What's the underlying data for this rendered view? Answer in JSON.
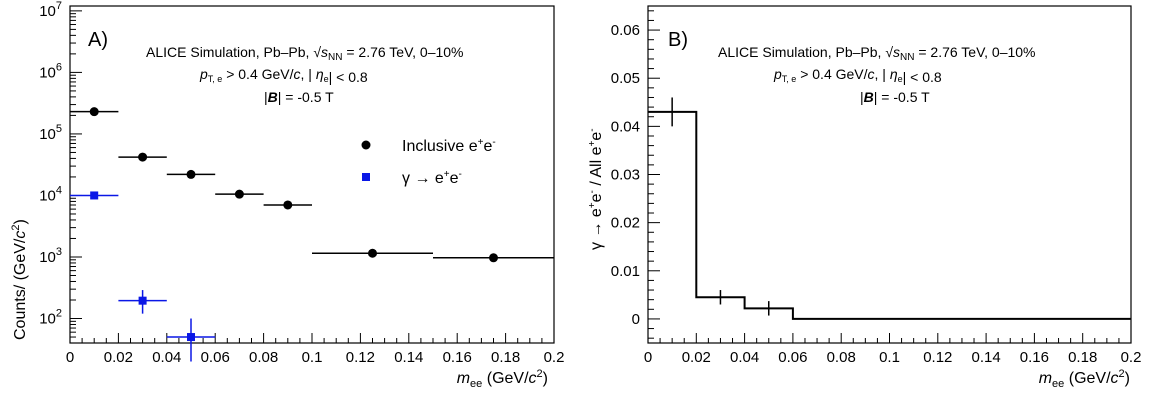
{
  "chart_data": [
    {
      "type": "scatter",
      "panel_label": "A)",
      "annotations": [
        "ALICE Simulation, Pb–Pb,",
        "= 2.76 TeV, 0–10%",
        "> 0.4 GeV/",
        ", |",
        "| < 0.8",
        "= -0.5 T"
      ],
      "xlabel": "(GeV/",
      "ylabel": "Counts/ (GeV/",
      "xlim": [
        0,
        0.2
      ],
      "ylim": [
        40,
        12000000
      ],
      "yscale": "log",
      "x_ticks": [
        "0",
        "0.02",
        "0.04",
        "0.06",
        "0.08",
        "0.1",
        "0.12",
        "0.14",
        "0.16",
        "0.18",
        "0.2"
      ],
      "y_ticks": [
        "10",
        "10",
        "10",
        "10",
        "10",
        "10",
        "10"
      ],
      "y_tick_exponents": [
        "2",
        "3",
        "4",
        "5",
        "6",
        "7"
      ],
      "legend_position": "center-right",
      "series": [
        {
          "name": "Inclusive e",
          "marker": "circle",
          "color": "#000000",
          "points": [
            {
              "x": 0.01,
              "xerr": 0.01,
              "y": 230000
            },
            {
              "x": 0.03,
              "xerr": 0.01,
              "y": 42000
            },
            {
              "x": 0.05,
              "xerr": 0.01,
              "y": 22000
            },
            {
              "x": 0.07,
              "xerr": 0.01,
              "y": 10500
            },
            {
              "x": 0.09,
              "xerr": 0.01,
              "y": 7000
            },
            {
              "x": 0.125,
              "xerr": 0.025,
              "y": 1150
            },
            {
              "x": 0.175,
              "xerr": 0.025,
              "y": 970,
              "yerr": [
                880,
                1080
              ]
            }
          ]
        },
        {
          "name": "γ → e",
          "marker": "square",
          "color": "#0a17e6",
          "points": [
            {
              "x": 0.01,
              "xerr": 0.01,
              "y": 10000
            },
            {
              "x": 0.03,
              "xerr": 0.01,
              "y": 195,
              "yerr": [
                120,
                290
              ]
            },
            {
              "x": 0.05,
              "xerr": 0.01,
              "y": 50,
              "yerr": [
                20,
                100
              ]
            }
          ]
        }
      ]
    },
    {
      "type": "line",
      "panel_label": "B)",
      "annotations": [
        "ALICE Simulation, Pb–Pb,",
        "= 2.76 TeV, 0–10%",
        "> 0.4 GeV/",
        ", |",
        "| < 0.8",
        "= -0.5 T"
      ],
      "xlabel": "(GeV/",
      "ylabel": "/ All e",
      "xlim": [
        0,
        0.2
      ],
      "ylim": [
        -0.005,
        0.065
      ],
      "x_ticks": [
        "0",
        "0.02",
        "0.04",
        "0.06",
        "0.08",
        "0.1",
        "0.12",
        "0.14",
        "0.16",
        "0.18",
        "0.2"
      ],
      "y_ticks": [
        "0",
        "0.01",
        "0.02",
        "0.03",
        "0.04",
        "0.05",
        "0.06"
      ],
      "histogram": {
        "bin_edges": [
          0,
          0.02,
          0.04,
          0.06,
          0.08,
          0.1,
          0.12,
          0.14,
          0.16,
          0.18,
          0.2
        ],
        "values": [
          0.043,
          0.0045,
          0.0022,
          0,
          0,
          0,
          0,
          0,
          0,
          0
        ],
        "errors": [
          0.003,
          0.0015,
          0.0015,
          0,
          0,
          0,
          0,
          0,
          0,
          0
        ]
      }
    }
  ]
}
